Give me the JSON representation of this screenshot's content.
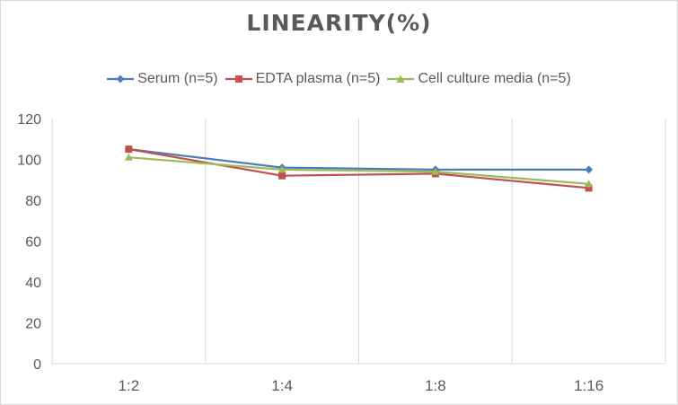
{
  "chart_data": {
    "type": "line",
    "title": "LINEARITY(%)",
    "categories": [
      "1:2",
      "1:4",
      "1:8",
      "1:16"
    ],
    "ylim": [
      0,
      120
    ],
    "yticks": [
      0,
      20,
      40,
      60,
      80,
      100,
      120
    ],
    "grid": "vertical category lines",
    "legend_position": "top",
    "series": [
      {
        "name": "Serum (n=5)",
        "color": "#4e7db5",
        "marker": "diamond",
        "values": [
          105,
          96,
          95,
          95
        ]
      },
      {
        "name": "EDTA plasma (n=5)",
        "color": "#c0504d",
        "marker": "square",
        "values": [
          105,
          92,
          93,
          86
        ]
      },
      {
        "name": "Cell culture media (n=5)",
        "color": "#9bbb59",
        "marker": "triangle",
        "values": [
          101,
          95,
          94,
          88
        ]
      }
    ]
  }
}
